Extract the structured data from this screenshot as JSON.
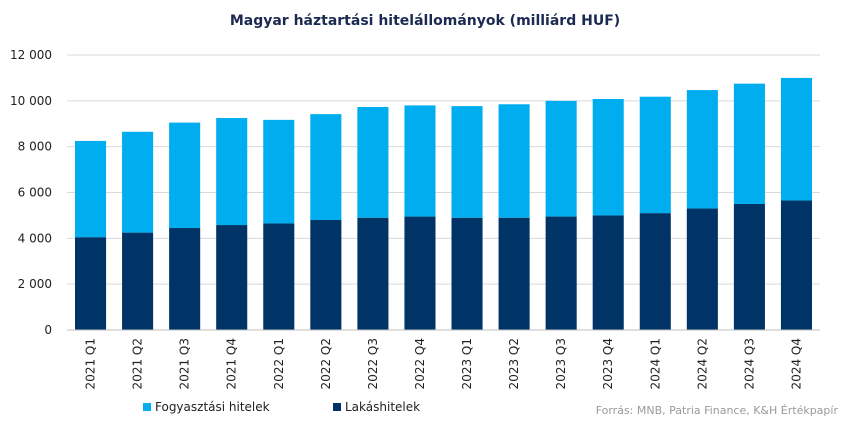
{
  "chart_data": {
    "type": "bar",
    "stacked": true,
    "title": "Magyar háztartási hitelállományok (milliárd HUF)",
    "xlabel": "",
    "ylabel": "",
    "ylim": [
      0,
      12000
    ],
    "yticks": [
      0,
      2000,
      4000,
      6000,
      8000,
      10000,
      12000
    ],
    "ytick_labels": [
      "0",
      "2 000",
      "4 000",
      "6 000",
      "8 000",
      "10 000",
      "12 000"
    ],
    "grid": "horizontal",
    "legend_position": "bottom-left",
    "categories": [
      "2021 Q1",
      "2021 Q2",
      "2021 Q3",
      "2021 Q4",
      "2022 Q1",
      "2022 Q2",
      "2022 Q3",
      "2022 Q4",
      "2023 Q1",
      "2023 Q2",
      "2023 Q3",
      "2023 Q4",
      "2024 Q1",
      "2024 Q2",
      "2024 Q3",
      "2024 Q4"
    ],
    "series": [
      {
        "name": "Lakáshitelek",
        "color": "#003366",
        "values": [
          4050,
          4250,
          4450,
          4580,
          4650,
          4800,
          4900,
          4950,
          4900,
          4900,
          4950,
          5000,
          5100,
          5300,
          5500,
          5650
        ]
      },
      {
        "name": "Fogyasztási hitelek",
        "color": "#00AEEF",
        "values": [
          4200,
          4400,
          4600,
          4670,
          4520,
          4620,
          4830,
          4850,
          4870,
          4950,
          5050,
          5080,
          5080,
          5170,
          5250,
          5350
        ]
      }
    ],
    "source": "Forrás: MNB, Patria Finance, K&H Értékpapír"
  }
}
